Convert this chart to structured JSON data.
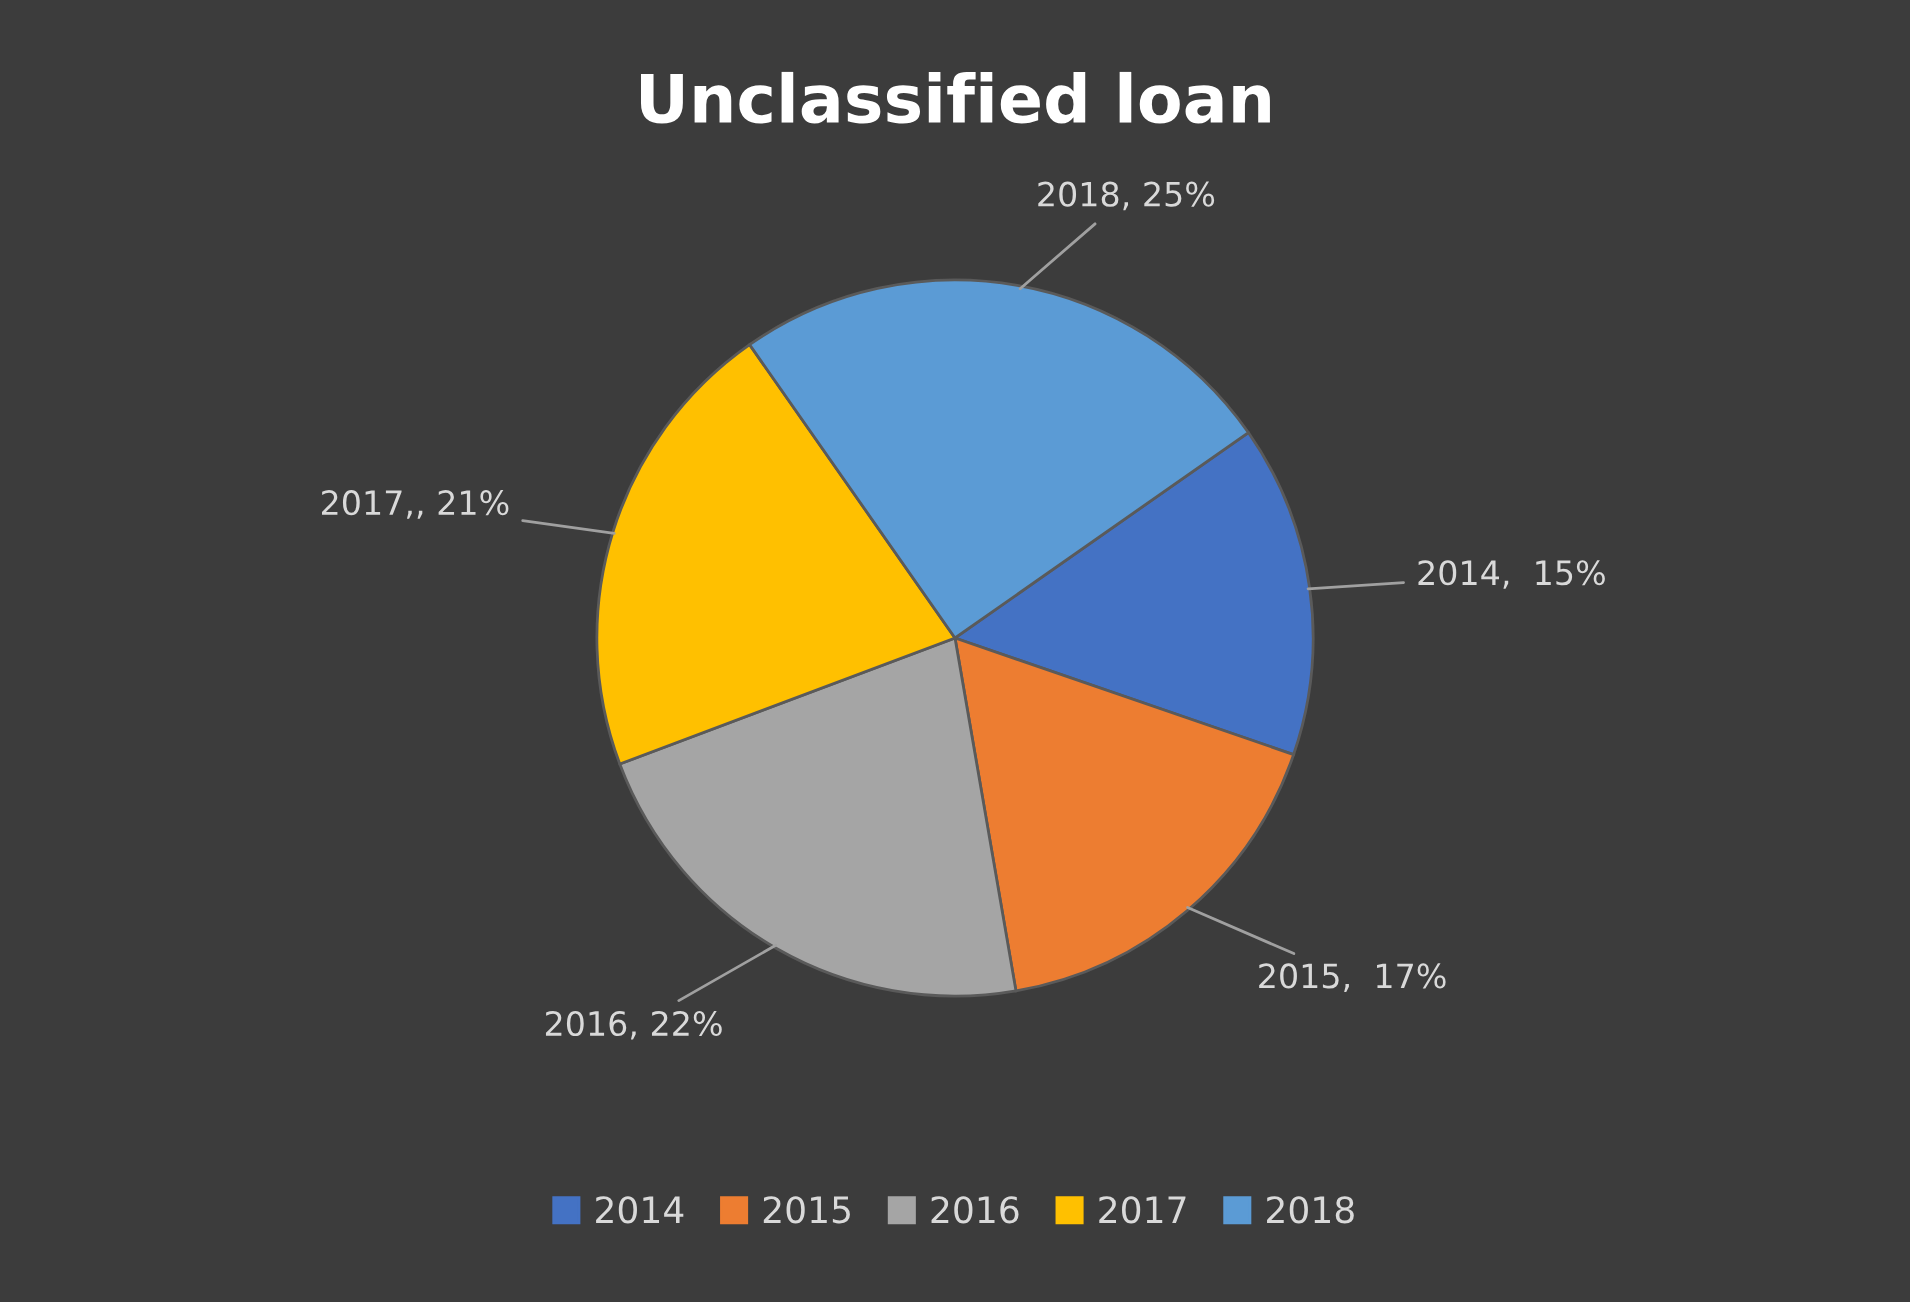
{
  "chart_data": {
    "type": "pie",
    "title": "Unclassified loan",
    "categories": [
      "2014",
      "2015",
      "2016",
      "2017",
      "2018"
    ],
    "values": [
      15,
      17,
      22,
      21,
      25
    ],
    "colors": [
      "#4472c4",
      "#ed7d31",
      "#a5a5a5",
      "#ffc000",
      "#5b9bd5"
    ],
    "value_labels": [
      "2014,  15%",
      "2015,  17%",
      "2016, 22%",
      "2017,, 21%",
      "2018, 25%"
    ],
    "legend": "bottom"
  }
}
